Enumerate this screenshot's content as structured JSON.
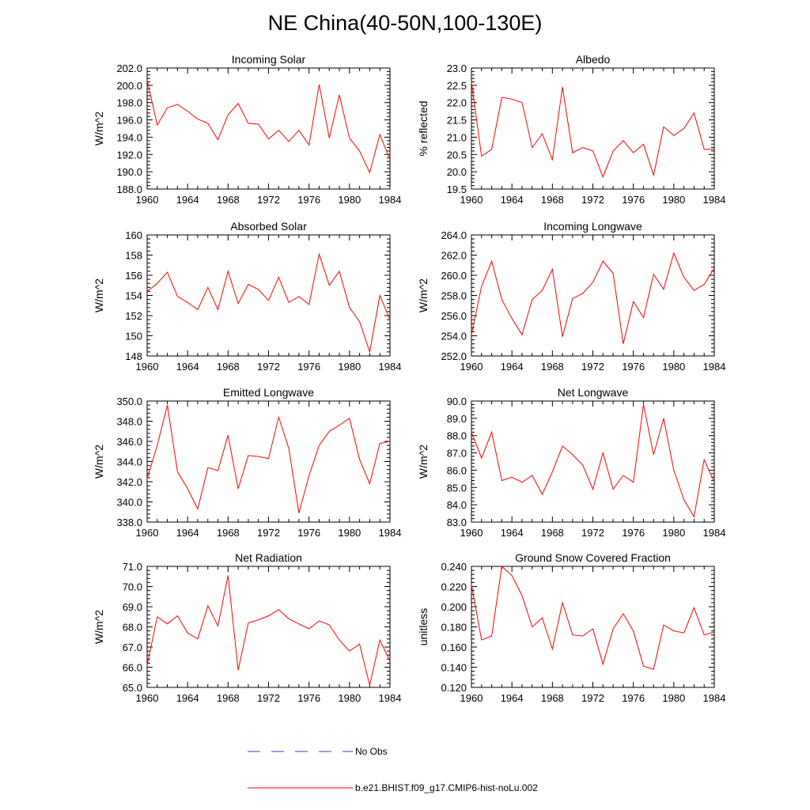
{
  "title": "NE China(40-50N,100-130E)",
  "legend": [
    {
      "label": "No Obs",
      "color": "#3a3ad0",
      "style": "dashed"
    },
    {
      "label": "b.e21.BHIST.f09_g17.CMIP6-hist-noLu.002",
      "color": "#ff0000",
      "style": "solid"
    }
  ],
  "chart_data": [
    {
      "type": "line",
      "title": "Incoming Solar",
      "ylabel": "W/m^2",
      "xlim": [
        1960,
        1984
      ],
      "ylim": [
        188,
        202
      ],
      "xticks": [
        1960,
        1964,
        1968,
        1972,
        1976,
        1980,
        1984
      ],
      "yticks": [
        "188.0",
        "190.0",
        "192.0",
        "194.0",
        "196.0",
        "198.0",
        "200.0",
        "202.0"
      ],
      "x": [
        1960,
        1961,
        1962,
        1963,
        1964,
        1965,
        1966,
        1967,
        1968,
        1969,
        1970,
        1971,
        1972,
        1973,
        1974,
        1975,
        1976,
        1977,
        1978,
        1979,
        1980,
        1981,
        1982,
        1983,
        1984
      ],
      "series": [
        {
          "name": "b.e21.BHIST.f09_g17.CMIP6-hist-noLu.002",
          "values": [
            200.6,
            195.4,
            197.4,
            197.8,
            197.0,
            196.1,
            195.6,
            193.7,
            196.6,
            197.9,
            195.6,
            195.5,
            193.8,
            194.8,
            193.5,
            194.8,
            193.1,
            200.1,
            193.9,
            198.9,
            193.9,
            192.4,
            189.9,
            194.3,
            191.4
          ]
        }
      ]
    },
    {
      "type": "line",
      "title": "Albedo",
      "ylabel": "% reflected",
      "xlim": [
        1960,
        1984
      ],
      "ylim": [
        19.5,
        23.0
      ],
      "xticks": [
        1960,
        1964,
        1968,
        1972,
        1976,
        1980,
        1984
      ],
      "yticks": [
        "19.5",
        "20.0",
        "20.5",
        "21.0",
        "21.5",
        "22.0",
        "22.5",
        "23.0"
      ],
      "x": [
        1960,
        1961,
        1962,
        1963,
        1964,
        1965,
        1966,
        1967,
        1968,
        1969,
        1970,
        1971,
        1972,
        1973,
        1974,
        1975,
        1976,
        1977,
        1978,
        1979,
        1980,
        1981,
        1982,
        1983,
        1984
      ],
      "series": [
        {
          "name": "b.e21.BHIST.f09_g17.CMIP6-hist-noLu.002",
          "values": [
            22.6,
            20.45,
            20.65,
            22.15,
            22.1,
            22.0,
            20.7,
            21.1,
            20.35,
            22.45,
            20.55,
            20.7,
            20.6,
            19.85,
            20.6,
            20.9,
            20.55,
            20.8,
            19.9,
            21.3,
            21.05,
            21.25,
            21.7,
            20.65,
            20.65
          ]
        }
      ]
    },
    {
      "type": "line",
      "title": "Absorbed Solar",
      "ylabel": "W/m^2",
      "xlim": [
        1960,
        1984
      ],
      "ylim": [
        148,
        160
      ],
      "xticks": [
        1960,
        1964,
        1968,
        1972,
        1976,
        1980,
        1984
      ],
      "yticks": [
        "148",
        "150",
        "152",
        "154",
        "156",
        "158",
        "160"
      ],
      "x": [
        1960,
        1961,
        1962,
        1963,
        1964,
        1965,
        1966,
        1967,
        1968,
        1969,
        1970,
        1971,
        1972,
        1973,
        1974,
        1975,
        1976,
        1977,
        1978,
        1979,
        1980,
        1981,
        1982,
        1983,
        1984
      ],
      "series": [
        {
          "name": "b.e21.BHIST.f09_g17.CMIP6-hist-noLu.002",
          "values": [
            154.4,
            155.2,
            156.3,
            153.9,
            153.3,
            152.6,
            154.8,
            152.6,
            156.4,
            153.2,
            155.1,
            154.6,
            153.5,
            155.8,
            153.3,
            153.9,
            153.1,
            158.1,
            155.0,
            156.4,
            152.8,
            151.4,
            148.4,
            154.0,
            151.6
          ]
        }
      ]
    },
    {
      "type": "line",
      "title": "Incoming Longwave",
      "ylabel": "W/m^2",
      "xlim": [
        1960,
        1984
      ],
      "ylim": [
        252,
        264
      ],
      "xticks": [
        1960,
        1964,
        1968,
        1972,
        1976,
        1980,
        1984
      ],
      "yticks": [
        "252.0",
        "254.0",
        "256.0",
        "258.0",
        "260.0",
        "262.0",
        "264.0"
      ],
      "x": [
        1960,
        1961,
        1962,
        1963,
        1964,
        1965,
        1966,
        1967,
        1968,
        1969,
        1970,
        1971,
        1972,
        1973,
        1974,
        1975,
        1976,
        1977,
        1978,
        1979,
        1980,
        1981,
        1982,
        1983,
        1984
      ],
      "series": [
        {
          "name": "b.e21.BHIST.f09_g17.CMIP6-hist-noLu.002",
          "values": [
            254.1,
            258.9,
            261.4,
            257.6,
            255.7,
            254.1,
            257.6,
            258.5,
            260.6,
            253.9,
            257.7,
            258.2,
            259.3,
            261.4,
            260.2,
            253.2,
            257.4,
            255.8,
            260.1,
            258.6,
            262.2,
            259.8,
            258.5,
            259.1,
            260.7
          ]
        }
      ]
    },
    {
      "type": "line",
      "title": "Emitted Longwave",
      "ylabel": "W/m^2",
      "xlim": [
        1960,
        1984
      ],
      "ylim": [
        338,
        350
      ],
      "xticks": [
        1960,
        1964,
        1968,
        1972,
        1976,
        1980,
        1984
      ],
      "yticks": [
        "338.0",
        "340.0",
        "342.0",
        "344.0",
        "346.0",
        "348.0",
        "350.0"
      ],
      "x": [
        1960,
        1961,
        1962,
        1963,
        1964,
        1965,
        1966,
        1967,
        1968,
        1969,
        1970,
        1971,
        1972,
        1973,
        1974,
        1975,
        1976,
        1977,
        1978,
        1979,
        1980,
        1981,
        1982,
        1983,
        1984
      ],
      "series": [
        {
          "name": "b.e21.BHIST.f09_g17.CMIP6-hist-noLu.002",
          "values": [
            342.3,
            345.6,
            349.6,
            343.0,
            341.3,
            339.3,
            343.4,
            343.1,
            346.6,
            341.3,
            344.6,
            344.5,
            344.3,
            348.4,
            345.3,
            338.9,
            342.6,
            345.6,
            347.0,
            347.6,
            348.3,
            344.2,
            341.8,
            345.8,
            346.0
          ]
        }
      ]
    },
    {
      "type": "line",
      "title": "Net Longwave",
      "ylabel": "W/m^2",
      "xlim": [
        1960,
        1984
      ],
      "ylim": [
        83,
        90
      ],
      "xticks": [
        1960,
        1964,
        1968,
        1972,
        1976,
        1980,
        1984
      ],
      "yticks": [
        "83.0",
        "84.0",
        "85.0",
        "86.0",
        "87.0",
        "88.0",
        "89.0",
        "90.0"
      ],
      "x": [
        1960,
        1961,
        1962,
        1963,
        1964,
        1965,
        1966,
        1967,
        1968,
        1969,
        1970,
        1971,
        1972,
        1973,
        1974,
        1975,
        1976,
        1977,
        1978,
        1979,
        1980,
        1981,
        1982,
        1983,
        1984
      ],
      "series": [
        {
          "name": "b.e21.BHIST.f09_g17.CMIP6-hist-noLu.002",
          "values": [
            88.2,
            86.7,
            88.2,
            85.4,
            85.6,
            85.3,
            85.7,
            84.6,
            85.9,
            87.4,
            86.9,
            86.3,
            84.9,
            87.0,
            84.9,
            85.7,
            85.3,
            89.8,
            86.9,
            89.0,
            86.0,
            84.3,
            83.3,
            86.6,
            85.3
          ]
        }
      ]
    },
    {
      "type": "line",
      "title": "Net Radiation",
      "ylabel": "W/m^2",
      "xlim": [
        1960,
        1984
      ],
      "ylim": [
        65,
        71
      ],
      "xticks": [
        1960,
        1964,
        1968,
        1972,
        1976,
        1980,
        1984
      ],
      "yticks": [
        "65.0",
        "66.0",
        "67.0",
        "68.0",
        "69.0",
        "70.0",
        "71.0"
      ],
      "x": [
        1960,
        1961,
        1962,
        1963,
        1964,
        1965,
        1966,
        1967,
        1968,
        1969,
        1970,
        1971,
        1972,
        1973,
        1974,
        1975,
        1976,
        1977,
        1978,
        1979,
        1980,
        1981,
        1982,
        1983,
        1984
      ],
      "series": [
        {
          "name": "b.e21.BHIST.f09_g17.CMIP6-hist-noLu.002",
          "values": [
            66.1,
            68.5,
            68.15,
            68.55,
            67.7,
            67.4,
            69.05,
            68.05,
            70.55,
            65.85,
            68.2,
            68.35,
            68.55,
            68.85,
            68.4,
            68.15,
            67.9,
            68.3,
            68.1,
            67.35,
            66.8,
            67.15,
            65.1,
            67.35,
            66.3
          ]
        }
      ]
    },
    {
      "type": "line",
      "title": "Ground Snow Covered Fraction",
      "ylabel": "unitless",
      "xlim": [
        1960,
        1984
      ],
      "ylim": [
        0.12,
        0.24
      ],
      "xticks": [
        1960,
        1964,
        1968,
        1972,
        1976,
        1980,
        1984
      ],
      "yticks": [
        "0.120",
        "0.140",
        "0.160",
        "0.180",
        "0.200",
        "0.220",
        "0.240"
      ],
      "x": [
        1960,
        1961,
        1962,
        1963,
        1964,
        1965,
        1966,
        1967,
        1968,
        1969,
        1970,
        1971,
        1972,
        1973,
        1974,
        1975,
        1976,
        1977,
        1978,
        1979,
        1980,
        1981,
        1982,
        1983,
        1984
      ],
      "series": [
        {
          "name": "b.e21.BHIST.f09_g17.CMIP6-hist-noLu.002",
          "values": [
            0.222,
            0.167,
            0.171,
            0.24,
            0.231,
            0.211,
            0.18,
            0.189,
            0.158,
            0.204,
            0.172,
            0.171,
            0.178,
            0.143,
            0.178,
            0.193,
            0.176,
            0.141,
            0.138,
            0.182,
            0.176,
            0.174,
            0.199,
            0.172,
            0.175
          ]
        }
      ]
    }
  ]
}
